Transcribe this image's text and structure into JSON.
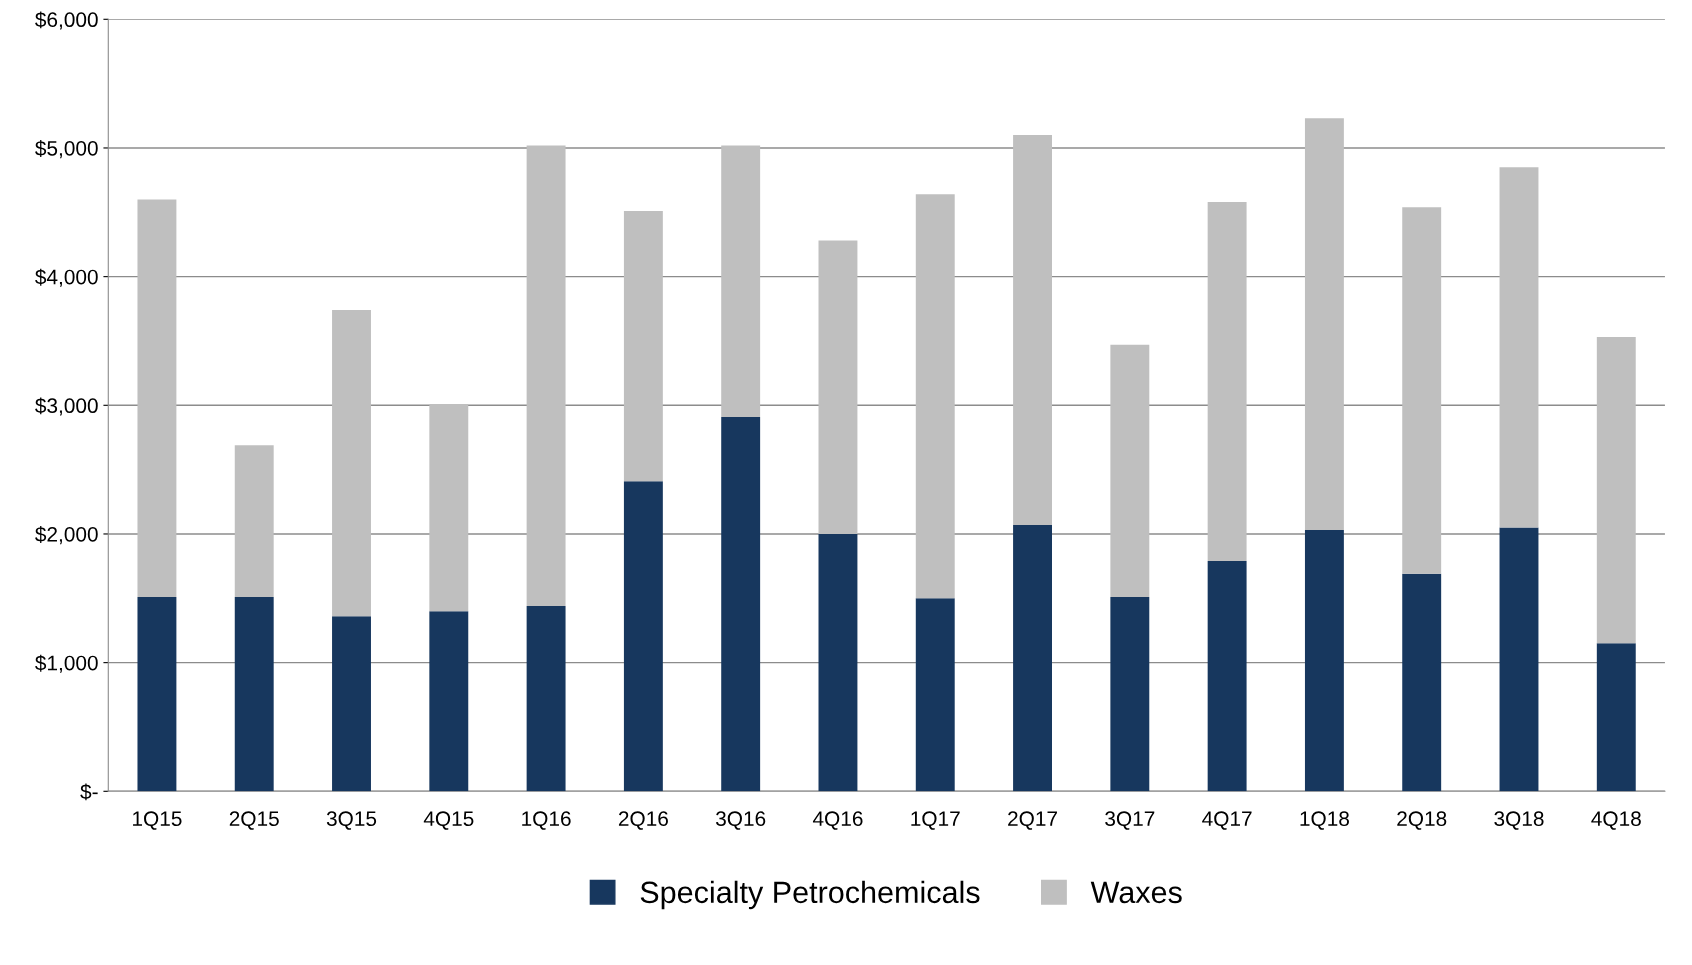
{
  "chart_data": {
    "type": "bar",
    "stacked": true,
    "categories": [
      "1Q15",
      "2Q15",
      "3Q15",
      "4Q15",
      "1Q16",
      "2Q16",
      "3Q16",
      "4Q16",
      "1Q17",
      "2Q17",
      "3Q17",
      "4Q17",
      "1Q18",
      "2Q18",
      "3Q18",
      "4Q18"
    ],
    "series": [
      {
        "name": "Specialty Petrochemicals",
        "color": "#17375e",
        "values": [
          1510,
          1510,
          1360,
          1400,
          1440,
          2410,
          2910,
          2000,
          1500,
          2070,
          1510,
          1790,
          2030,
          1690,
          2050,
          1150
        ]
      },
      {
        "name": "Waxes",
        "color": "#bfbfbf",
        "values": [
          3090,
          1180,
          2380,
          1610,
          3580,
          2100,
          2110,
          2280,
          3140,
          3030,
          1960,
          2790,
          3200,
          2850,
          2800,
          2380
        ]
      }
    ],
    "ylim": [
      0,
      6000
    ],
    "yticks": [
      {
        "value": 0,
        "label": "$-"
      },
      {
        "value": 1000,
        "label": "$1,000"
      },
      {
        "value": 2000,
        "label": "$2,000"
      },
      {
        "value": 3000,
        "label": "$3,000"
      },
      {
        "value": 4000,
        "label": "$4,000"
      },
      {
        "value": 5000,
        "label": "$5,000"
      },
      {
        "value": 6000,
        "label": "$6,000"
      }
    ],
    "grid": "y",
    "legend": "bottom"
  }
}
